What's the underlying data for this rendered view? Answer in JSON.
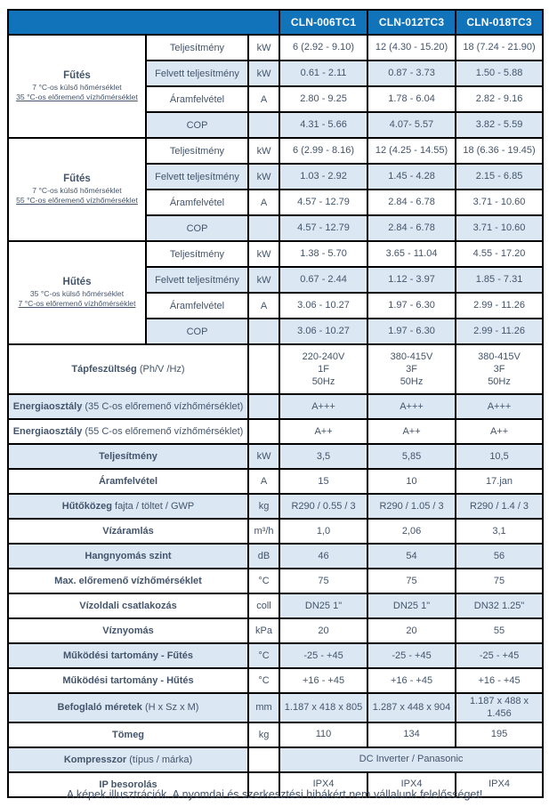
{
  "colors": {
    "header_bg": "#1173b9",
    "header_text": "#ffffff",
    "row_shaded": "#dbe8f4",
    "text": "#44546a",
    "border": "#000000"
  },
  "header": {
    "models": [
      "CLN-006TC1",
      "CLN-012TC3",
      "CLN-018TC3"
    ]
  },
  "sections": [
    {
      "title": "Fűtés",
      "subtitles": [
        "7 °C-os külső hőmérséklet",
        "35 °C-os előremenő vízhőmérséklet"
      ],
      "rows": [
        {
          "label": "Teljesítmény",
          "unit": "kW",
          "values": [
            "6 (2.92 - 9.10)",
            "12 (4.30 - 15.20)",
            "18 (7.24 - 21.90)"
          ],
          "shaded": false
        },
        {
          "label": "Felvett teljesítmény",
          "unit": "kW",
          "values": [
            "0.61 - 2.11",
            "0.87 - 3.73",
            "1.50 - 5.88"
          ],
          "shaded": true
        },
        {
          "label": "Áramfelvétel",
          "unit": "A",
          "values": [
            "2.80 - 9.25",
            "1.78 - 6.04",
            "2.82 - 9.16"
          ],
          "shaded": false
        },
        {
          "label": "COP",
          "unit": "",
          "values": [
            "4.31 - 5.66",
            "4.07- 5.57",
            "3.82 - 5.59"
          ],
          "shaded": true
        }
      ]
    },
    {
      "title": "Fűtés",
      "subtitles": [
        "7 °C-os külső hőmérséklet",
        "55 °C-os előremenő vízhőmérséklet"
      ],
      "rows": [
        {
          "label": "Teljesítmény",
          "unit": "kW",
          "values": [
            "6 (2.99 - 8.16)",
            "12 (4.25 - 14.55)",
            "18 (6.36 - 19.45)"
          ],
          "shaded": false
        },
        {
          "label": "Felvett teljesítmény",
          "unit": "kW",
          "values": [
            "1.03 - 2.92",
            "1.45 - 4.28",
            "2.15 - 6.85"
          ],
          "shaded": true
        },
        {
          "label": "Áramfelvétel",
          "unit": "A",
          "values": [
            "4.57 - 12.79",
            "2.84 - 6.78",
            "3.71 - 10.60"
          ],
          "shaded": false
        },
        {
          "label": "COP",
          "unit": "",
          "values": [
            "4.57 - 12.79",
            "2.84 - 6.78",
            "3.71 - 10.60"
          ],
          "shaded": true
        }
      ]
    },
    {
      "title": "Hűtés",
      "subtitles": [
        "35 °C-os külső hőmérséklet",
        "7 °C-os előremenő vízhőmérséklet"
      ],
      "rows": [
        {
          "label": "Teljesítmény",
          "unit": "kW",
          "values": [
            "1.38 - 5.70",
            "3.65 - 11.04",
            "4.55 - 17.20"
          ],
          "shaded": false
        },
        {
          "label": "Felvett teljesítmény",
          "unit": "kW",
          "values": [
            "0.67 - 2.44",
            "1.12 - 3.97",
            "1.85 - 7.31"
          ],
          "shaded": true
        },
        {
          "label": "Áramfelvétel",
          "unit": "A",
          "values": [
            "3.06 - 10.27",
            "1.97 - 6.30",
            "2.99 - 11.26"
          ],
          "shaded": false
        },
        {
          "label": "COP",
          "unit": "",
          "values": [
            "3.06 - 10.27",
            "1.97 - 6.30",
            "2.99 - 11.26"
          ],
          "shaded": true
        }
      ]
    }
  ],
  "spec_rows": [
    {
      "label": "Tápfeszültség",
      "note": "(Ph/V /Hz)",
      "unit": "",
      "values": [
        [
          "220-240V",
          "1F",
          "50Hz"
        ],
        [
          "380-415V",
          "3F",
          "50Hz"
        ],
        [
          "380-415V",
          "3F",
          "50Hz"
        ]
      ],
      "shade": "none",
      "tall": true
    },
    {
      "label": "Energiaosztály",
      "note": "(35 C-os előremenő vízhőmérséklet)",
      "unit": "",
      "values": [
        "A+++",
        "A+++",
        "A+++"
      ],
      "shade": "full"
    },
    {
      "label": "Energiaosztály",
      "note": "(55 C-os előremenő vízhőmérséklet)",
      "unit": "",
      "values": [
        "A++",
        "A++",
        "A++"
      ],
      "shade": "none"
    },
    {
      "label": "Teljesítmény",
      "note": "",
      "unit": "kW",
      "values": [
        "3,5",
        "5,85",
        "10,5"
      ],
      "shade": "full"
    },
    {
      "label": "Áramfelvétel",
      "note": "",
      "unit": "A",
      "values": [
        "15",
        "10",
        "17.jan"
      ],
      "shade": "none"
    },
    {
      "label": "Hűtőközeg",
      "note": "fajta / töltet / GWP",
      "unit": "kg",
      "values": [
        "R290 / 0.55 / 3",
        "R290 / 1.05 / 3",
        "R290 / 1.4 / 3"
      ],
      "shade": "full"
    },
    {
      "label": "Vízáramlás",
      "note": "",
      "unit": "m³/h",
      "values": [
        "1,0",
        "2,06",
        "3,1"
      ],
      "shade": "none"
    },
    {
      "label": "Hangnyomás szint",
      "note": "",
      "unit": "dB",
      "values": [
        "46",
        "54",
        "56"
      ],
      "shade": "full"
    },
    {
      "label": "Max. előremenő vízhőmérséklet",
      "note": "",
      "unit": "°C",
      "values": [
        "75",
        "75",
        "75"
      ],
      "shade": "none"
    },
    {
      "label": "Vízoldali csatlakozás",
      "note": "",
      "unit": "coll",
      "values": [
        "DN25 1\"",
        "DN25 1\"",
        "DN32 1.25\""
      ],
      "shade": "data"
    },
    {
      "label": "Víznyomás",
      "note": "",
      "unit": "kPa",
      "values": [
        "20",
        "20",
        "55"
      ],
      "shade": "none"
    },
    {
      "label": "Működési tartomány - Fűtés",
      "note": "",
      "unit": "°C",
      "values": [
        "-25 - +45",
        "-25 - +45",
        "-25 - +45"
      ],
      "shade": "full"
    },
    {
      "label": "Működési tartomány - Hűtés",
      "note": "",
      "unit": "°C",
      "values": [
        "+16 - +45",
        "+16 - +45",
        "+16 - +45"
      ],
      "shade": "none"
    },
    {
      "label": "Befoglaló méretek",
      "note": "(H x Sz x M)",
      "unit": "mm",
      "values": [
        "1.187 x 418 x 805",
        "1.287 x 448 x 904",
        "1.187 x 488 x 1.456"
      ],
      "shade": "full"
    },
    {
      "label": "Tömeg",
      "note": "",
      "unit": "kg",
      "values": [
        "110",
        "134",
        "195"
      ],
      "shade": "none"
    },
    {
      "label": "Kompresszor",
      "note": "(típus / márka)",
      "unit": "",
      "values": [
        "DC Inverter / Panasonic"
      ],
      "merged": true,
      "shade": "label_data"
    },
    {
      "label": "IP besorolás",
      "note": "",
      "unit": "",
      "values": [
        "IPX4",
        "IPX4",
        "IPX4"
      ],
      "shade": "none"
    }
  ],
  "footer": "A képek illusztrációk. A nyomdai és szerkesztési hibákért nem vállalunk felelősséget!"
}
